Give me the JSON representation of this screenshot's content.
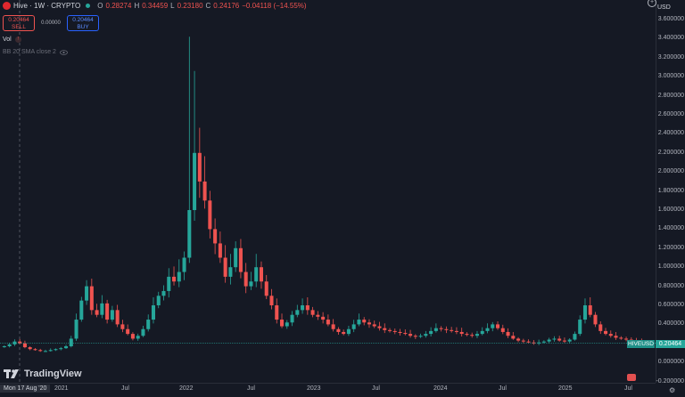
{
  "header": {
    "symbol": "Hive · 1W · CRYPTO",
    "o_label": "O",
    "o_value": "0.28274",
    "h_label": "H",
    "h_value": "0.34459",
    "l_label": "L",
    "l_value": "0.23180",
    "c_label": "C",
    "c_value": "0.24176",
    "change": "−0.04118 (−14.55%)"
  },
  "trade": {
    "sell_price": "0.20464",
    "sell_label": "SELL",
    "spread": "0.00000",
    "buy_price": "0.20464",
    "buy_label": "BUY"
  },
  "indicators": {
    "vol": "Vol",
    "bb": "BB 20 SMA close 2"
  },
  "axis": {
    "currency": "USD",
    "y_ticks": [
      "3.600000",
      "3.400000",
      "3.200000",
      "3.000000",
      "2.800000",
      "2.600000",
      "2.400000",
      "2.200000",
      "2.000000",
      "1.800000",
      "1.600000",
      "1.400000",
      "1.200000",
      "1.000000",
      "0.800000",
      "0.600000",
      "0.400000",
      "0.200000",
      "0.000000",
      "-0.200000"
    ],
    "x_ticks": [
      {
        "label": "2021",
        "x": 67
      },
      {
        "label": "Jul",
        "x": 142
      },
      {
        "label": "2022",
        "x": 207
      },
      {
        "label": "Jul",
        "x": 283
      },
      {
        "label": "2023",
        "x": 350
      },
      {
        "label": "Jul",
        "x": 423
      },
      {
        "label": "2024",
        "x": 492
      },
      {
        "label": "Jul",
        "x": 565
      },
      {
        "label": "2025",
        "x": 632
      },
      {
        "label": "Jul",
        "x": 706
      }
    ]
  },
  "current": {
    "price": "0.20464",
    "symbol_tag": "HIVEUSD"
  },
  "crosshair_date": "Mon 17 Aug '20",
  "watermark": "TradingView",
  "colors": {
    "up": "#26a69a",
    "down": "#ef5350",
    "bg": "#151924"
  },
  "chart_data": {
    "type": "candlestick",
    "title": "Hive · 1W · CRYPTO",
    "ylim": [
      -0.2,
      3.6
    ],
    "x_range": [
      "2020-08-17",
      "2025-07-14"
    ],
    "approx_weekly_closes": [
      0.17,
      0.19,
      0.22,
      0.2,
      0.16,
      0.14,
      0.13,
      0.12,
      0.12,
      0.13,
      0.14,
      0.15,
      0.17,
      0.25,
      0.45,
      0.65,
      0.8,
      0.55,
      0.5,
      0.62,
      0.45,
      0.55,
      0.4,
      0.35,
      0.3,
      0.25,
      0.28,
      0.35,
      0.45,
      0.6,
      0.7,
      0.75,
      0.9,
      0.85,
      0.95,
      1.1,
      1.6,
      2.2,
      1.9,
      1.7,
      1.4,
      1.25,
      1.1,
      0.9,
      1.0,
      1.2,
      0.95,
      0.8,
      0.85,
      1.0,
      0.85,
      0.7,
      0.6,
      0.45,
      0.38,
      0.42,
      0.5,
      0.55,
      0.6,
      0.55,
      0.5,
      0.48,
      0.45,
      0.4,
      0.35,
      0.32,
      0.3,
      0.35,
      0.4,
      0.45,
      0.42,
      0.4,
      0.38,
      0.36,
      0.34,
      0.33,
      0.32,
      0.31,
      0.3,
      0.28,
      0.27,
      0.28,
      0.3,
      0.33,
      0.36,
      0.35,
      0.34,
      0.33,
      0.32,
      0.3,
      0.29,
      0.28,
      0.3,
      0.33,
      0.36,
      0.4,
      0.36,
      0.32,
      0.28,
      0.25,
      0.23,
      0.22,
      0.21,
      0.2,
      0.21,
      0.22,
      0.24,
      0.25,
      0.23,
      0.22,
      0.24,
      0.3,
      0.45,
      0.6,
      0.5,
      0.4,
      0.33,
      0.3,
      0.28,
      0.26,
      0.25,
      0.24,
      0.23,
      0.22,
      0.21,
      0.2
    ]
  }
}
